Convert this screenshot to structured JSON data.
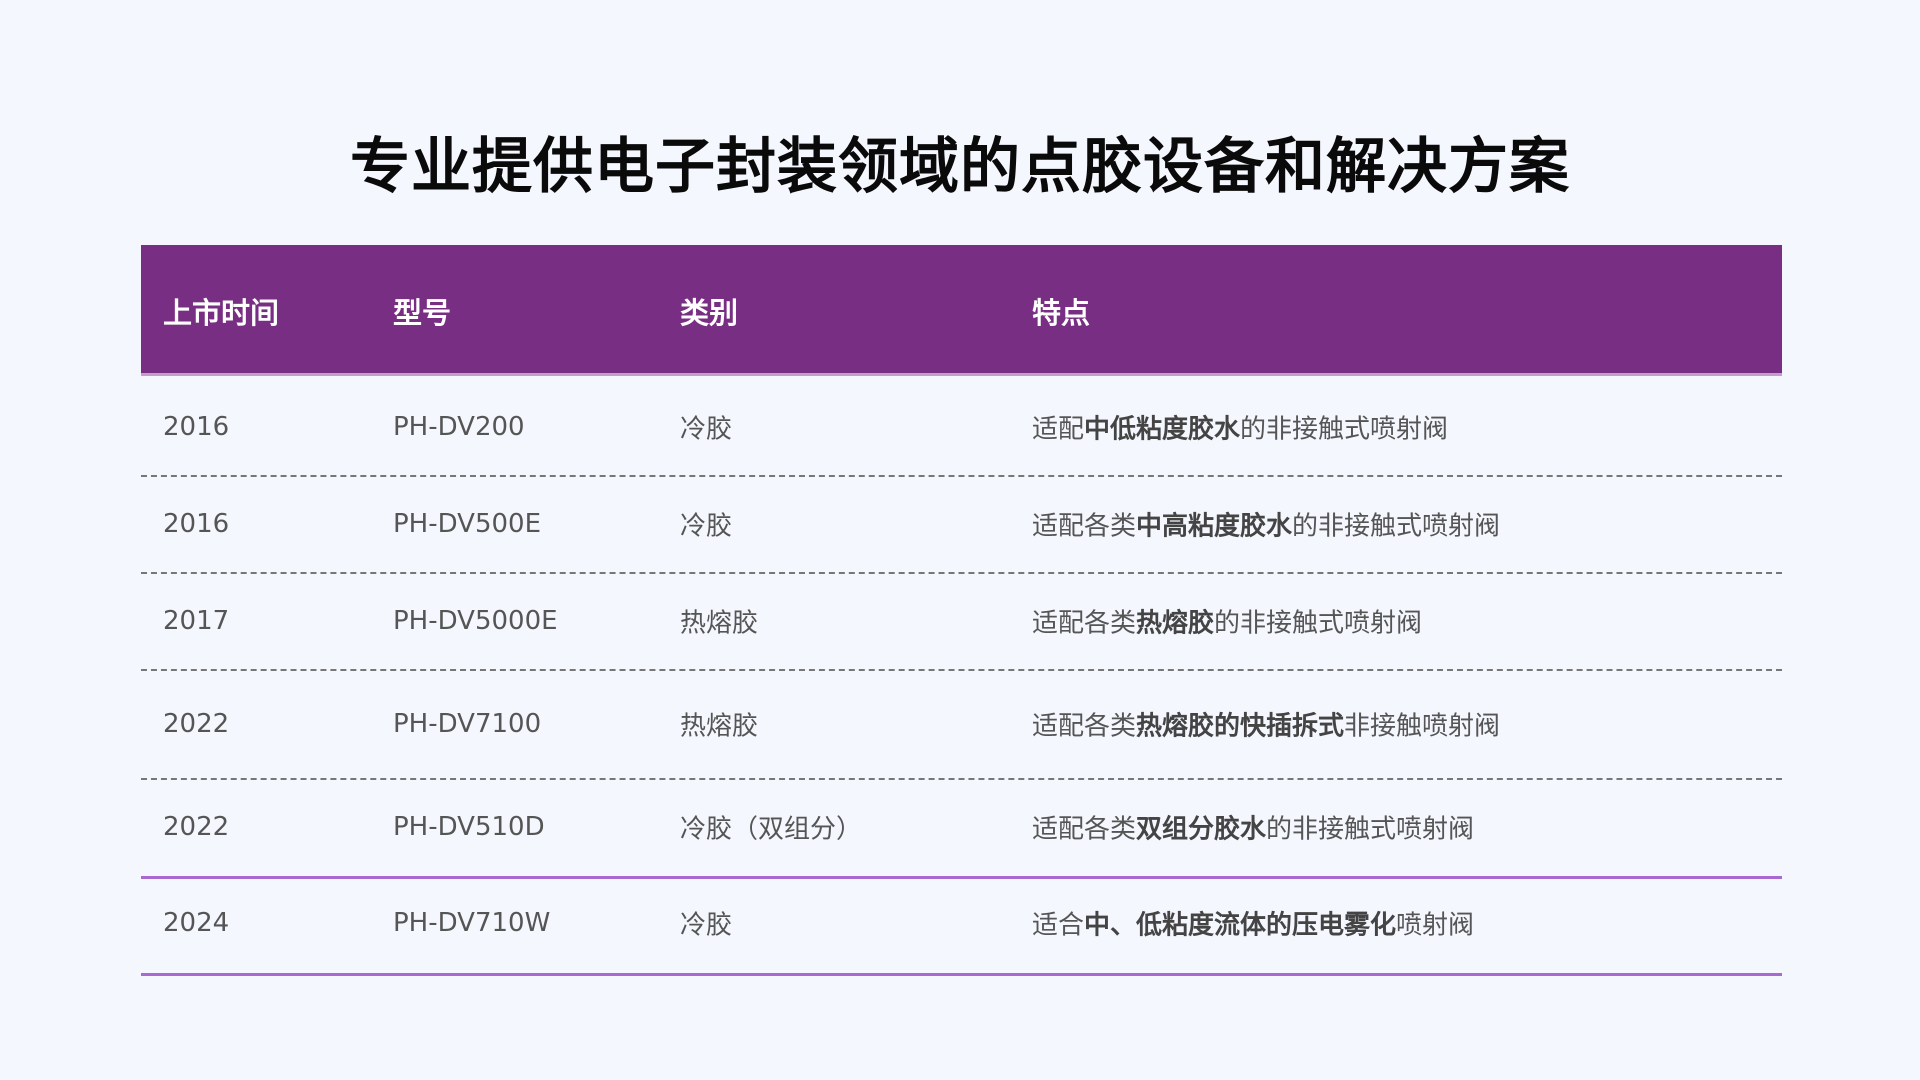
{
  "title": "专业提供电子封装领域的点胶设备和解决方案",
  "table": {
    "headers": [
      "上市时间",
      "型号",
      "类别",
      "特点"
    ],
    "rows": [
      {
        "year": "2016",
        "model": "PH-DV200",
        "category": "冷胶",
        "feature": [
          {
            "t": "适配",
            "b": false
          },
          {
            "t": "中低粘度胶水",
            "b": true
          },
          {
            "t": "的非接触式喷射阀",
            "b": false
          }
        ]
      },
      {
        "year": "2016",
        "model": "PH-DV500E",
        "category": "冷胶",
        "feature": [
          {
            "t": "适配各类",
            "b": false
          },
          {
            "t": "中高粘度胶水",
            "b": true
          },
          {
            "t": "的非接触式喷射阀",
            "b": false
          }
        ]
      },
      {
        "year": "2017",
        "model": "PH-DV5000E",
        "category": "热熔胶",
        "feature": [
          {
            "t": "适配各类",
            "b": false
          },
          {
            "t": "热熔胶",
            "b": true
          },
          {
            "t": "的非接触式喷射阀",
            "b": false
          }
        ]
      },
      {
        "year": "2022",
        "model": "PH-DV7100",
        "category": "热熔胶",
        "feature": [
          {
            "t": "适配各类",
            "b": false
          },
          {
            "t": "热熔胶的快插拆式",
            "b": true
          },
          {
            "t": "非接触喷射阀",
            "b": false
          }
        ]
      },
      {
        "year": "2022",
        "model": "PH-DV510D",
        "category": "冷胶（双组分）",
        "feature": [
          {
            "t": "适配各类",
            "b": false
          },
          {
            "t": "双组分胶水",
            "b": true
          },
          {
            "t": "的非接触式喷射阀",
            "b": false
          }
        ]
      },
      {
        "year": "2024",
        "model": "PH-DV710W",
        "category": "冷胶",
        "feature": [
          {
            "t": "适合",
            "b": false
          },
          {
            "t": "中、低粘度流体的压电雾化",
            "b": true
          },
          {
            "t": "喷射阀",
            "b": false
          }
        ]
      }
    ]
  },
  "colors": {
    "header_bg": "#782e82",
    "accent_line": "#a86ad0",
    "background": "#f4f7fe"
  }
}
